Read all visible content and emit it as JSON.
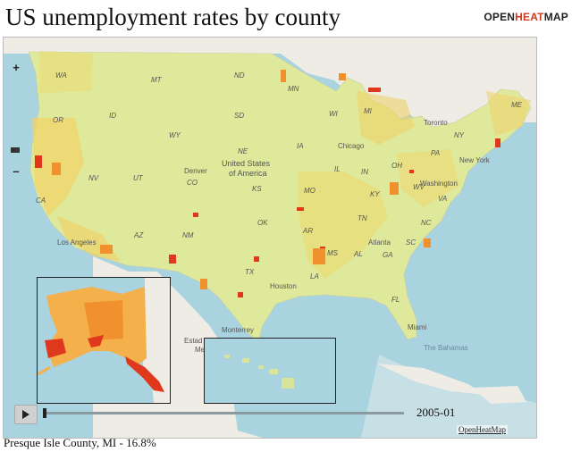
{
  "title": "US unemployment rates by county",
  "logo": {
    "part1": "OPEN",
    "part2": "HEAT",
    "part3": "MAP",
    "accent": "#d23a1e"
  },
  "zoom": {
    "plus": "+",
    "minus": "–"
  },
  "map_labels": {
    "country": "United States\nof America",
    "states": [
      "WA",
      "OR",
      "ID",
      "MT",
      "ND",
      "MN",
      "WI",
      "MI",
      "SD",
      "WY",
      "NE",
      "IA",
      "IL",
      "IN",
      "OH",
      "NY",
      "ME",
      "PA",
      "NV",
      "UT",
      "CO",
      "KS",
      "MO",
      "KY",
      "WV",
      "VA",
      "CA",
      "AZ",
      "NM",
      "OK",
      "AR",
      "TN",
      "NC",
      "SC",
      "MS",
      "AL",
      "GA",
      "LA",
      "TX",
      "FL"
    ],
    "cities": [
      "Denver",
      "Chicago",
      "Toronto",
      "New York",
      "Washington",
      "Los Angeles",
      "Atlanta",
      "Houston",
      "Monterrey",
      "Miami"
    ],
    "regions": [
      "The Bahamas",
      "Estad",
      "Me"
    ]
  },
  "timeline": {
    "date": "2005-01",
    "play_icon": "play-icon",
    "progress": 0.0
  },
  "credit": "OpenHeatMap",
  "status": "Presque Isle County, MI - 16.8%",
  "colors": {
    "ocean": "#a9d3df",
    "land": "#f1efe8",
    "low": "#d8e89a",
    "mid": "#f3b545",
    "high": "#e0381c"
  }
}
